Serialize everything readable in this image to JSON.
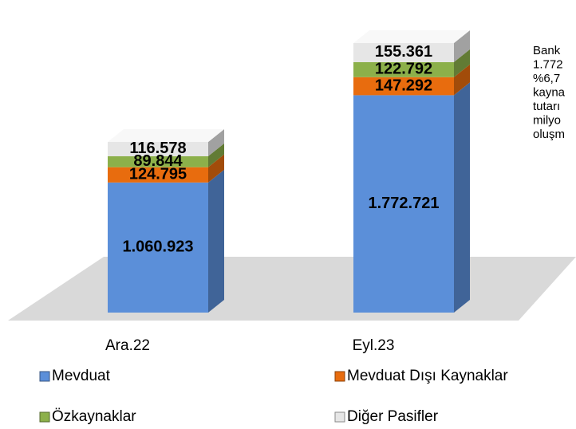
{
  "chart_data": {
    "type": "bar3d_stacked",
    "categories": [
      "Ara.22",
      "Eyl.23"
    ],
    "series": [
      {
        "name": "Mevduat",
        "color": "#5b8fd9",
        "values": [
          1060923,
          1772721
        ],
        "value_labels": [
          "1.060.923",
          "1.772.721"
        ]
      },
      {
        "name": "Mevduat Dışı Kaynaklar",
        "color": "#e86c0e",
        "values": [
          124795,
          147292
        ],
        "value_labels": [
          "124.795",
          "147.292"
        ]
      },
      {
        "name": "Özkaynaklar",
        "color": "#8cb04a",
        "values": [
          89844,
          122792
        ],
        "value_labels": [
          "89.844",
          "122.792"
        ]
      },
      {
        "name": "Diğer Pasifler",
        "color": "#e6e6e6",
        "values": [
          116578,
          155361
        ],
        "value_labels": [
          "116.578",
          "155.361"
        ]
      }
    ],
    "annotation": [
      "Bank",
      "1.772",
      "%6,7",
      "kayna",
      "tutarı",
      "milyo",
      "oluşm"
    ]
  }
}
